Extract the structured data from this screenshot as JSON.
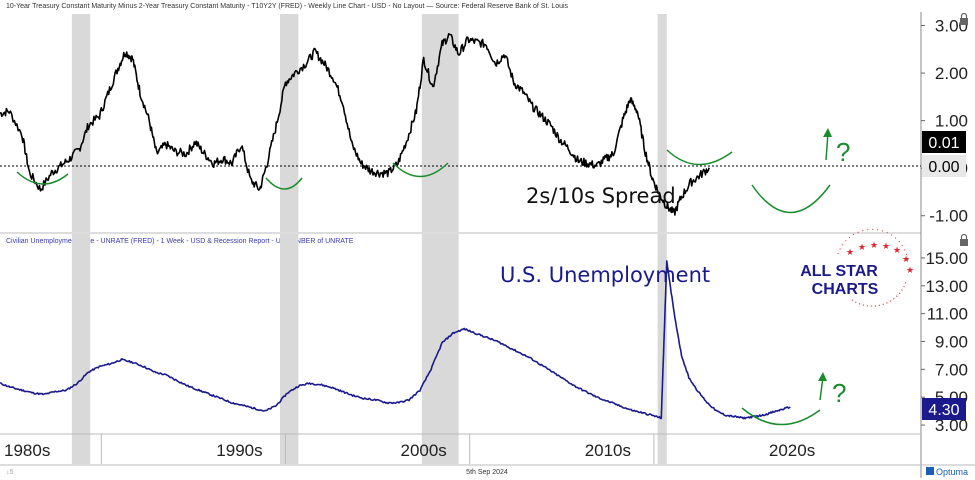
{
  "header_top": "10-Year Treasury Constant Maturity Minus 2-Year Treasury Constant Maturity - T10Y2Y (FRED) - Weekly Line Chart - USD - No Layout — Source: Federal Reserve Bank of St. Louis",
  "header_bottom": "Civilian Unemployment Rate - UNRATE (FRED) - 1 Week - USD & Recession Report - USA - NBER of UNRATE",
  "date_label": "5th Sep 2024",
  "footer_small": "↓5",
  "brand": {
    "name": "Optuma",
    "logo_text_1": "ALL STAR",
    "logo_text_2": "CHARTS"
  },
  "colors": {
    "spread": "#000000",
    "unemployment": "#1a1a8c",
    "annotation": "#1a8c2e",
    "recession": "#d9d9d9",
    "value_box_dark": "#000000",
    "value_box_blue": "#1a1a8c",
    "logo_red": "#e0242e"
  },
  "chart_data": [
    {
      "type": "line",
      "title": "",
      "annotation_text": "2s/10s Spread",
      "question_mark": "?",
      "y_ticks": [
        "3.00",
        "2.00",
        "1.00",
        "0.00",
        "-1.00"
      ],
      "value_labels": [
        "0.01",
        "0.00"
      ],
      "ylim": [
        -1.3,
        3.2
      ],
      "xlim": [
        1980,
        2030
      ],
      "series": [
        {
          "values": [
            [
              1980,
              1.15
            ],
            [
              1980.5,
              1.2
            ],
            [
              1981.2,
              0.7
            ],
            [
              1981.6,
              -0.1
            ],
            [
              1982.2,
              -0.45
            ],
            [
              1982.8,
              -0.1
            ],
            [
              1983.3,
              0.05
            ],
            [
              1983.8,
              0.2
            ],
            [
              1984.3,
              0.4
            ],
            [
              1984.8,
              0.9
            ],
            [
              1985.4,
              1.1
            ],
            [
              1985.9,
              1.6
            ],
            [
              1986.4,
              2.1
            ],
            [
              1986.8,
              2.45
            ],
            [
              1987.2,
              2.3
            ],
            [
              1987.6,
              1.6
            ],
            [
              1988.1,
              1.0
            ],
            [
              1988.5,
              0.3
            ],
            [
              1989.0,
              0.5
            ],
            [
              1989.5,
              0.35
            ],
            [
              1990.1,
              0.3
            ],
            [
              1990.6,
              0.55
            ],
            [
              1991.1,
              0.3
            ],
            [
              1991.6,
              0.1
            ],
            [
              1992.1,
              0.2
            ],
            [
              1992.6,
              0.1
            ],
            [
              1993.1,
              0.5
            ],
            [
              1993.6,
              -0.25
            ],
            [
              1994.1,
              -0.45
            ],
            [
              1994.5,
              0.1
            ],
            [
              1995.0,
              0.9
            ],
            [
              1995.5,
              1.8
            ],
            [
              1996.0,
              2.0
            ],
            [
              1996.6,
              2.2
            ],
            [
              1997.1,
              2.45
            ],
            [
              1997.6,
              2.2
            ],
            [
              1998.1,
              1.9
            ],
            [
              1998.6,
              1.4
            ],
            [
              1999.1,
              0.5
            ],
            [
              1999.6,
              0.1
            ],
            [
              2000.1,
              -0.05
            ],
            [
              2000.6,
              -0.1
            ],
            [
              2001.1,
              -0.1
            ],
            [
              2001.6,
              0.1
            ],
            [
              2002.1,
              0.6
            ],
            [
              2002.6,
              1.2
            ],
            [
              2003.0,
              2.3
            ],
            [
              2003.5,
              1.7
            ],
            [
              2004.0,
              2.6
            ],
            [
              2004.4,
              2.8
            ],
            [
              2004.9,
              2.4
            ],
            [
              2005.4,
              2.7
            ],
            [
              2005.9,
              2.65
            ],
            [
              2006.4,
              2.6
            ],
            [
              2006.9,
              2.2
            ],
            [
              2007.4,
              2.4
            ],
            [
              2007.9,
              1.8
            ],
            [
              2008.4,
              1.6
            ],
            [
              2008.9,
              1.3
            ],
            [
              2009.4,
              1.1
            ],
            [
              2009.9,
              0.9
            ],
            [
              2010.4,
              0.6
            ],
            [
              2010.9,
              0.4
            ],
            [
              2011.4,
              0.15
            ],
            [
              2011.9,
              0.1
            ],
            [
              2012.4,
              0.05
            ],
            [
              2012.9,
              0.2
            ],
            [
              2013.3,
              0.3
            ],
            [
              2013.8,
              1.0
            ],
            [
              2014.2,
              1.45
            ],
            [
              2014.6,
              1.2
            ],
            [
              2015.0,
              0.4
            ],
            [
              2015.4,
              -0.2
            ],
            [
              2015.8,
              -0.55
            ],
            [
              2016.2,
              -0.8
            ],
            [
              2016.6,
              -0.95
            ],
            [
              2017.0,
              -0.6
            ],
            [
              2017.5,
              -0.3
            ],
            [
              2018.0,
              -0.15
            ],
            [
              2018.5,
              0.01
            ]
          ]
        }
      ]
    },
    {
      "type": "line",
      "title": "",
      "annotation_text": "U.S. Unemployment",
      "question_mark": "?",
      "y_ticks": [
        "15.00",
        "13.00",
        "11.00",
        "9.00",
        "7.00",
        "5.00",
        "3.00"
      ],
      "value_labels": [
        "4.30"
      ],
      "ylim": [
        2.5,
        16.0
      ],
      "xlim": [
        1980,
        2030
      ],
      "x_tick_labels": [
        "1980s",
        "1990s",
        "2000s",
        "2010s",
        "2020s"
      ],
      "series": [
        {
          "values": [
            [
              1980,
              6.0
            ],
            [
              1980.6,
              5.7
            ],
            [
              1981.2,
              5.5
            ],
            [
              1981.8,
              5.3
            ],
            [
              1982.4,
              5.2
            ],
            [
              1983.0,
              5.4
            ],
            [
              1983.6,
              5.5
            ],
            [
              1984.2,
              6.0
            ],
            [
              1984.8,
              6.8
            ],
            [
              1985.4,
              7.2
            ],
            [
              1986.0,
              7.4
            ],
            [
              1986.6,
              7.7
            ],
            [
              1987.2,
              7.5
            ],
            [
              1987.8,
              7.2
            ],
            [
              1988.4,
              6.8
            ],
            [
              1989.0,
              6.6
            ],
            [
              1989.6,
              6.2
            ],
            [
              1990.2,
              5.8
            ],
            [
              1990.8,
              5.5
            ],
            [
              1991.4,
              5.2
            ],
            [
              1992.0,
              4.9
            ],
            [
              1992.6,
              4.6
            ],
            [
              1993.2,
              4.4
            ],
            [
              1993.8,
              4.2
            ],
            [
              1994.4,
              4.0
            ],
            [
              1995.0,
              4.4
            ],
            [
              1995.6,
              5.3
            ],
            [
              1996.2,
              5.8
            ],
            [
              1996.8,
              6.0
            ],
            [
              1997.4,
              5.9
            ],
            [
              1998.0,
              5.7
            ],
            [
              1998.6,
              5.4
            ],
            [
              1999.2,
              5.1
            ],
            [
              1999.8,
              4.9
            ],
            [
              2000.4,
              4.8
            ],
            [
              2001.0,
              4.6
            ],
            [
              2001.6,
              4.6
            ],
            [
              2002.2,
              4.8
            ],
            [
              2002.8,
              5.5
            ],
            [
              2003.4,
              7.0
            ],
            [
              2004.0,
              8.9
            ],
            [
              2004.6,
              9.6
            ],
            [
              2005.2,
              9.9
            ],
            [
              2005.8,
              9.6
            ],
            [
              2006.4,
              9.3
            ],
            [
              2007.0,
              9.0
            ],
            [
              2007.6,
              8.6
            ],
            [
              2008.2,
              8.2
            ],
            [
              2008.8,
              7.8
            ],
            [
              2009.4,
              7.3
            ],
            [
              2010.0,
              6.8
            ],
            [
              2010.6,
              6.3
            ],
            [
              2011.2,
              5.8
            ],
            [
              2011.8,
              5.4
            ],
            [
              2012.4,
              5.0
            ],
            [
              2013.0,
              4.7
            ],
            [
              2013.6,
              4.4
            ],
            [
              2014.2,
              4.1
            ],
            [
              2014.8,
              3.9
            ],
            [
              2015.4,
              3.7
            ],
            [
              2015.9,
              3.5
            ],
            [
              2016.2,
              14.8
            ],
            [
              2016.6,
              11.0
            ],
            [
              2017.0,
              8.0
            ],
            [
              2017.4,
              6.4
            ],
            [
              2017.9,
              5.4
            ],
            [
              2018.4,
              4.6
            ],
            [
              2018.9,
              4.0
            ],
            [
              2019.4,
              3.7
            ],
            [
              2019.9,
              3.6
            ],
            [
              2020.4,
              3.5
            ],
            [
              2020.9,
              3.6
            ],
            [
              2021.4,
              3.7
            ],
            [
              2021.9,
              3.9
            ],
            [
              2022.4,
              4.1
            ],
            [
              2022.9,
              4.3
            ]
          ]
        }
      ]
    }
  ],
  "recessions": [
    [
      1983.9,
      1984.9
    ],
    [
      1995.2,
      1996.2
    ],
    [
      2002.9,
      2004.9
    ],
    [
      2015.7,
      2016.2
    ]
  ]
}
